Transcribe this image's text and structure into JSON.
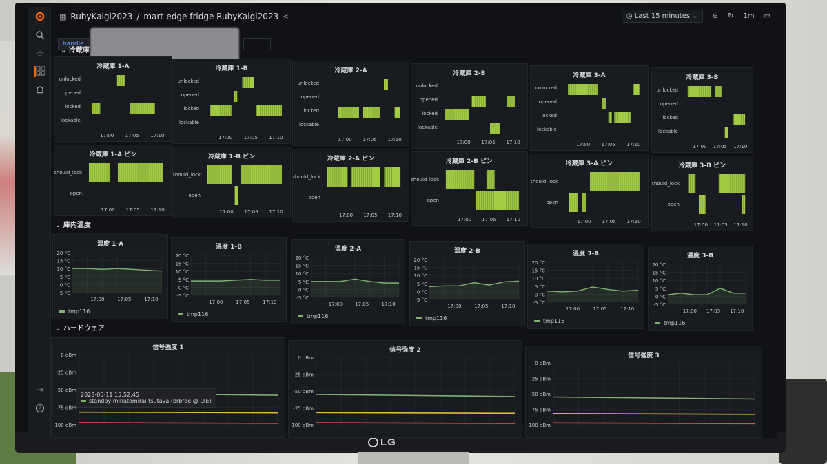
{
  "dashboard": {
    "folder": "RubyKaigi2023",
    "title": "mart-edge fridge RubyKaigi2023",
    "variable_label": "handle",
    "time_range": "Last 15 minutes",
    "refresh": "1m",
    "brand": "LG"
  },
  "rows": {
    "fridge": "冷蔵庫",
    "temperature": "庫内温度",
    "hardware": "ハードウェア"
  },
  "lock_states": [
    "unlocked",
    "opened",
    "locked",
    "lockable"
  ],
  "pin_states": [
    "should_lock",
    "open"
  ],
  "time_ticks": [
    "17:00",
    "17:05",
    "17:10"
  ],
  "lock_panels": [
    {
      "title": "冷蔵庫 1-A",
      "segments": [
        [
          0,
          0.1,
          0.2,
          2
        ],
        [
          1,
          0.4,
          0.5,
          0
        ],
        [
          2,
          0.55,
          0.85,
          2
        ]
      ]
    },
    {
      "title": "冷蔵庫 1-B",
      "segments": [
        [
          0,
          0.1,
          0.35,
          2
        ],
        [
          1,
          0.38,
          0.42,
          1
        ],
        [
          2,
          0.48,
          0.62,
          0
        ],
        [
          3,
          0.65,
          0.95,
          2
        ]
      ]
    },
    {
      "title": "冷蔵庫 2-A",
      "segments": [
        [
          0,
          0.2,
          0.45,
          2
        ],
        [
          1,
          0.5,
          0.7,
          2
        ],
        [
          2,
          0.75,
          0.8,
          0
        ],
        [
          3,
          0.88,
          0.95,
          2
        ]
      ]
    },
    {
      "title": "冷蔵庫 2-B",
      "segments": [
        [
          0,
          0.05,
          0.35,
          2
        ],
        [
          1,
          0.38,
          0.55,
          1
        ],
        [
          2,
          0.6,
          0.72,
          3
        ],
        [
          3,
          0.8,
          0.9,
          1
        ]
      ]
    },
    {
      "title": "冷蔵庫 3-A",
      "segments": [
        [
          0,
          0.1,
          0.45,
          0
        ],
        [
          1,
          0.5,
          0.55,
          1
        ],
        [
          2,
          0.58,
          0.62,
          2
        ],
        [
          3,
          0.65,
          0.85,
          2
        ],
        [
          4,
          0.88,
          0.95,
          0
        ]
      ]
    },
    {
      "title": "冷蔵庫 3-B",
      "segments": [
        [
          0,
          0.1,
          0.45,
          0
        ],
        [
          1,
          0.5,
          0.6,
          0
        ],
        [
          2,
          0.65,
          0.7,
          3
        ],
        [
          3,
          0.78,
          0.95,
          2
        ]
      ]
    }
  ],
  "pin_panels": [
    {
      "title": "冷蔵庫 1-A ピン",
      "segments": [
        [
          0,
          0.05,
          0.3,
          0
        ],
        [
          1,
          0.4,
          0.95,
          0
        ]
      ]
    },
    {
      "title": "冷蔵庫 1-B ピン",
      "segments": [
        [
          0,
          0.05,
          0.35,
          0
        ],
        [
          1,
          0.38,
          0.42,
          1
        ],
        [
          2,
          0.45,
          0.95,
          0
        ]
      ]
    },
    {
      "title": "冷蔵庫 2-A ピン",
      "segments": [
        [
          0,
          0.05,
          0.3,
          0
        ],
        [
          1,
          0.35,
          0.7,
          0
        ],
        [
          2,
          0.75,
          0.95,
          0
        ]
      ]
    },
    {
      "title": "冷蔵庫 2-B ピン",
      "segments": [
        [
          0,
          0.05,
          0.4,
          0
        ],
        [
          1,
          0.42,
          0.95,
          1
        ],
        [
          2,
          0.55,
          0.65,
          0
        ]
      ]
    },
    {
      "title": "冷蔵庫 3-A ピン",
      "segments": [
        [
          0,
          0.1,
          0.2,
          1
        ],
        [
          1,
          0.25,
          0.3,
          1
        ],
        [
          2,
          0.35,
          0.95,
          0
        ]
      ]
    },
    {
      "title": "冷蔵庫 3-B ピン",
      "segments": [
        [
          0,
          0.1,
          0.2,
          0
        ],
        [
          1,
          0.25,
          0.35,
          1
        ],
        [
          2,
          0.55,
          0.95,
          0
        ],
        [
          3,
          0.9,
          0.95,
          1
        ]
      ]
    }
  ],
  "temp_axis": [
    "20 °C",
    "15 °C",
    "10 °C",
    "5 °C",
    "0 °C",
    "-5 °C"
  ],
  "temp_panels": [
    {
      "title": "温度 1-A",
      "legend": "tmp116"
    },
    {
      "title": "温度 1-B",
      "legend": "tmp116"
    },
    {
      "title": "温度 2-A",
      "legend": "tmp116"
    },
    {
      "title": "温度 2-B",
      "legend": "tmp116"
    },
    {
      "title": "温度 3-A",
      "legend": "tmp116"
    },
    {
      "title": "温度 3-B",
      "legend": "tmp116"
    }
  ],
  "signal_axis": [
    "0 dBm",
    "-25 dBm",
    "-50 dBm",
    "-75 dBm",
    "-100 dBm"
  ],
  "signal_panels": [
    {
      "title": "信号強度 1"
    },
    {
      "title": "信号強度 2"
    },
    {
      "title": "信号強度 3"
    }
  ],
  "tooltip": {
    "time": "2023-05-11 15:52:45",
    "series": "standby-minatomirai-tsutaya (brbfde @ LTE)"
  },
  "chart_data": [
    {
      "type": "line",
      "title": "温度 1-A",
      "x": [
        "16:58",
        "17:00",
        "17:02",
        "17:04",
        "17:06",
        "17:08",
        "17:10"
      ],
      "series": [
        {
          "name": "tmp116",
          "values": [
            10,
            10,
            9.5,
            10,
            9.5,
            9,
            8.5
          ]
        }
      ],
      "ylabel": "",
      "ylim": [
        -5,
        20
      ]
    },
    {
      "type": "line",
      "title": "温度 1-B",
      "x": [
        "16:58",
        "17:00",
        "17:02",
        "17:04",
        "17:06",
        "17:08",
        "17:10"
      ],
      "series": [
        {
          "name": "tmp116",
          "values": [
            4,
            4,
            4,
            4.5,
            5,
            4.5,
            4.5
          ]
        }
      ],
      "ylabel": "",
      "ylim": [
        -5,
        20
      ]
    },
    {
      "type": "line",
      "title": "温度 2-A",
      "x": [
        "16:58",
        "17:00",
        "17:02",
        "17:04",
        "17:06",
        "17:08",
        "17:10"
      ],
      "series": [
        {
          "name": "tmp116",
          "values": [
            5,
            5,
            5,
            6.5,
            5,
            4,
            4
          ]
        }
      ],
      "ylabel": "",
      "ylim": [
        -5,
        20
      ]
    },
    {
      "type": "line",
      "title": "温度 2-B",
      "x": [
        "16:58",
        "17:00",
        "17:02",
        "17:04",
        "17:06",
        "17:08",
        "17:10"
      ],
      "series": [
        {
          "name": "tmp116",
          "values": [
            3,
            3.5,
            3.5,
            5.5,
            4,
            6,
            6.5
          ]
        }
      ],
      "ylabel": "",
      "ylim": [
        -5,
        20
      ]
    },
    {
      "type": "line",
      "title": "温度 3-A",
      "x": [
        "16:58",
        "17:00",
        "17:02",
        "17:04",
        "17:06",
        "17:08",
        "17:10"
      ],
      "series": [
        {
          "name": "tmp116",
          "values": [
            2,
            1.5,
            2,
            4.5,
            3,
            2,
            2.5
          ]
        }
      ],
      "ylabel": "",
      "ylim": [
        -5,
        20
      ]
    },
    {
      "type": "line",
      "title": "温度 3-B",
      "x": [
        "16:58",
        "17:00",
        "17:02",
        "17:04",
        "17:06",
        "17:08",
        "17:10"
      ],
      "series": [
        {
          "name": "tmp116",
          "values": [
            1,
            2,
            1,
            1,
            5,
            2,
            2
          ]
        }
      ],
      "ylabel": "",
      "ylim": [
        -5,
        20
      ]
    }
  ],
  "colors": {
    "state_bar": "#a3cc45",
    "temp_line": "#7eb26d",
    "signal_green": "#7eb26d",
    "signal_orange": "#eab839",
    "signal_red": "#e24d42",
    "panel_bg": "#181b1f",
    "screen_bg": "#111217"
  },
  "signal_levels": [
    -55,
    -82,
    -97
  ],
  "icons": {
    "logo": "grafana-icon",
    "search": "search-icon",
    "starred": "star-icon",
    "dashboards": "grid-icon",
    "alerting": "bell-icon",
    "signin": "signin-icon",
    "help": "help-icon",
    "share": "share-icon",
    "clock": "clock-icon",
    "zoom_out": "zoom-out-icon",
    "refresh": "refresh-icon",
    "tv": "tv-icon"
  }
}
